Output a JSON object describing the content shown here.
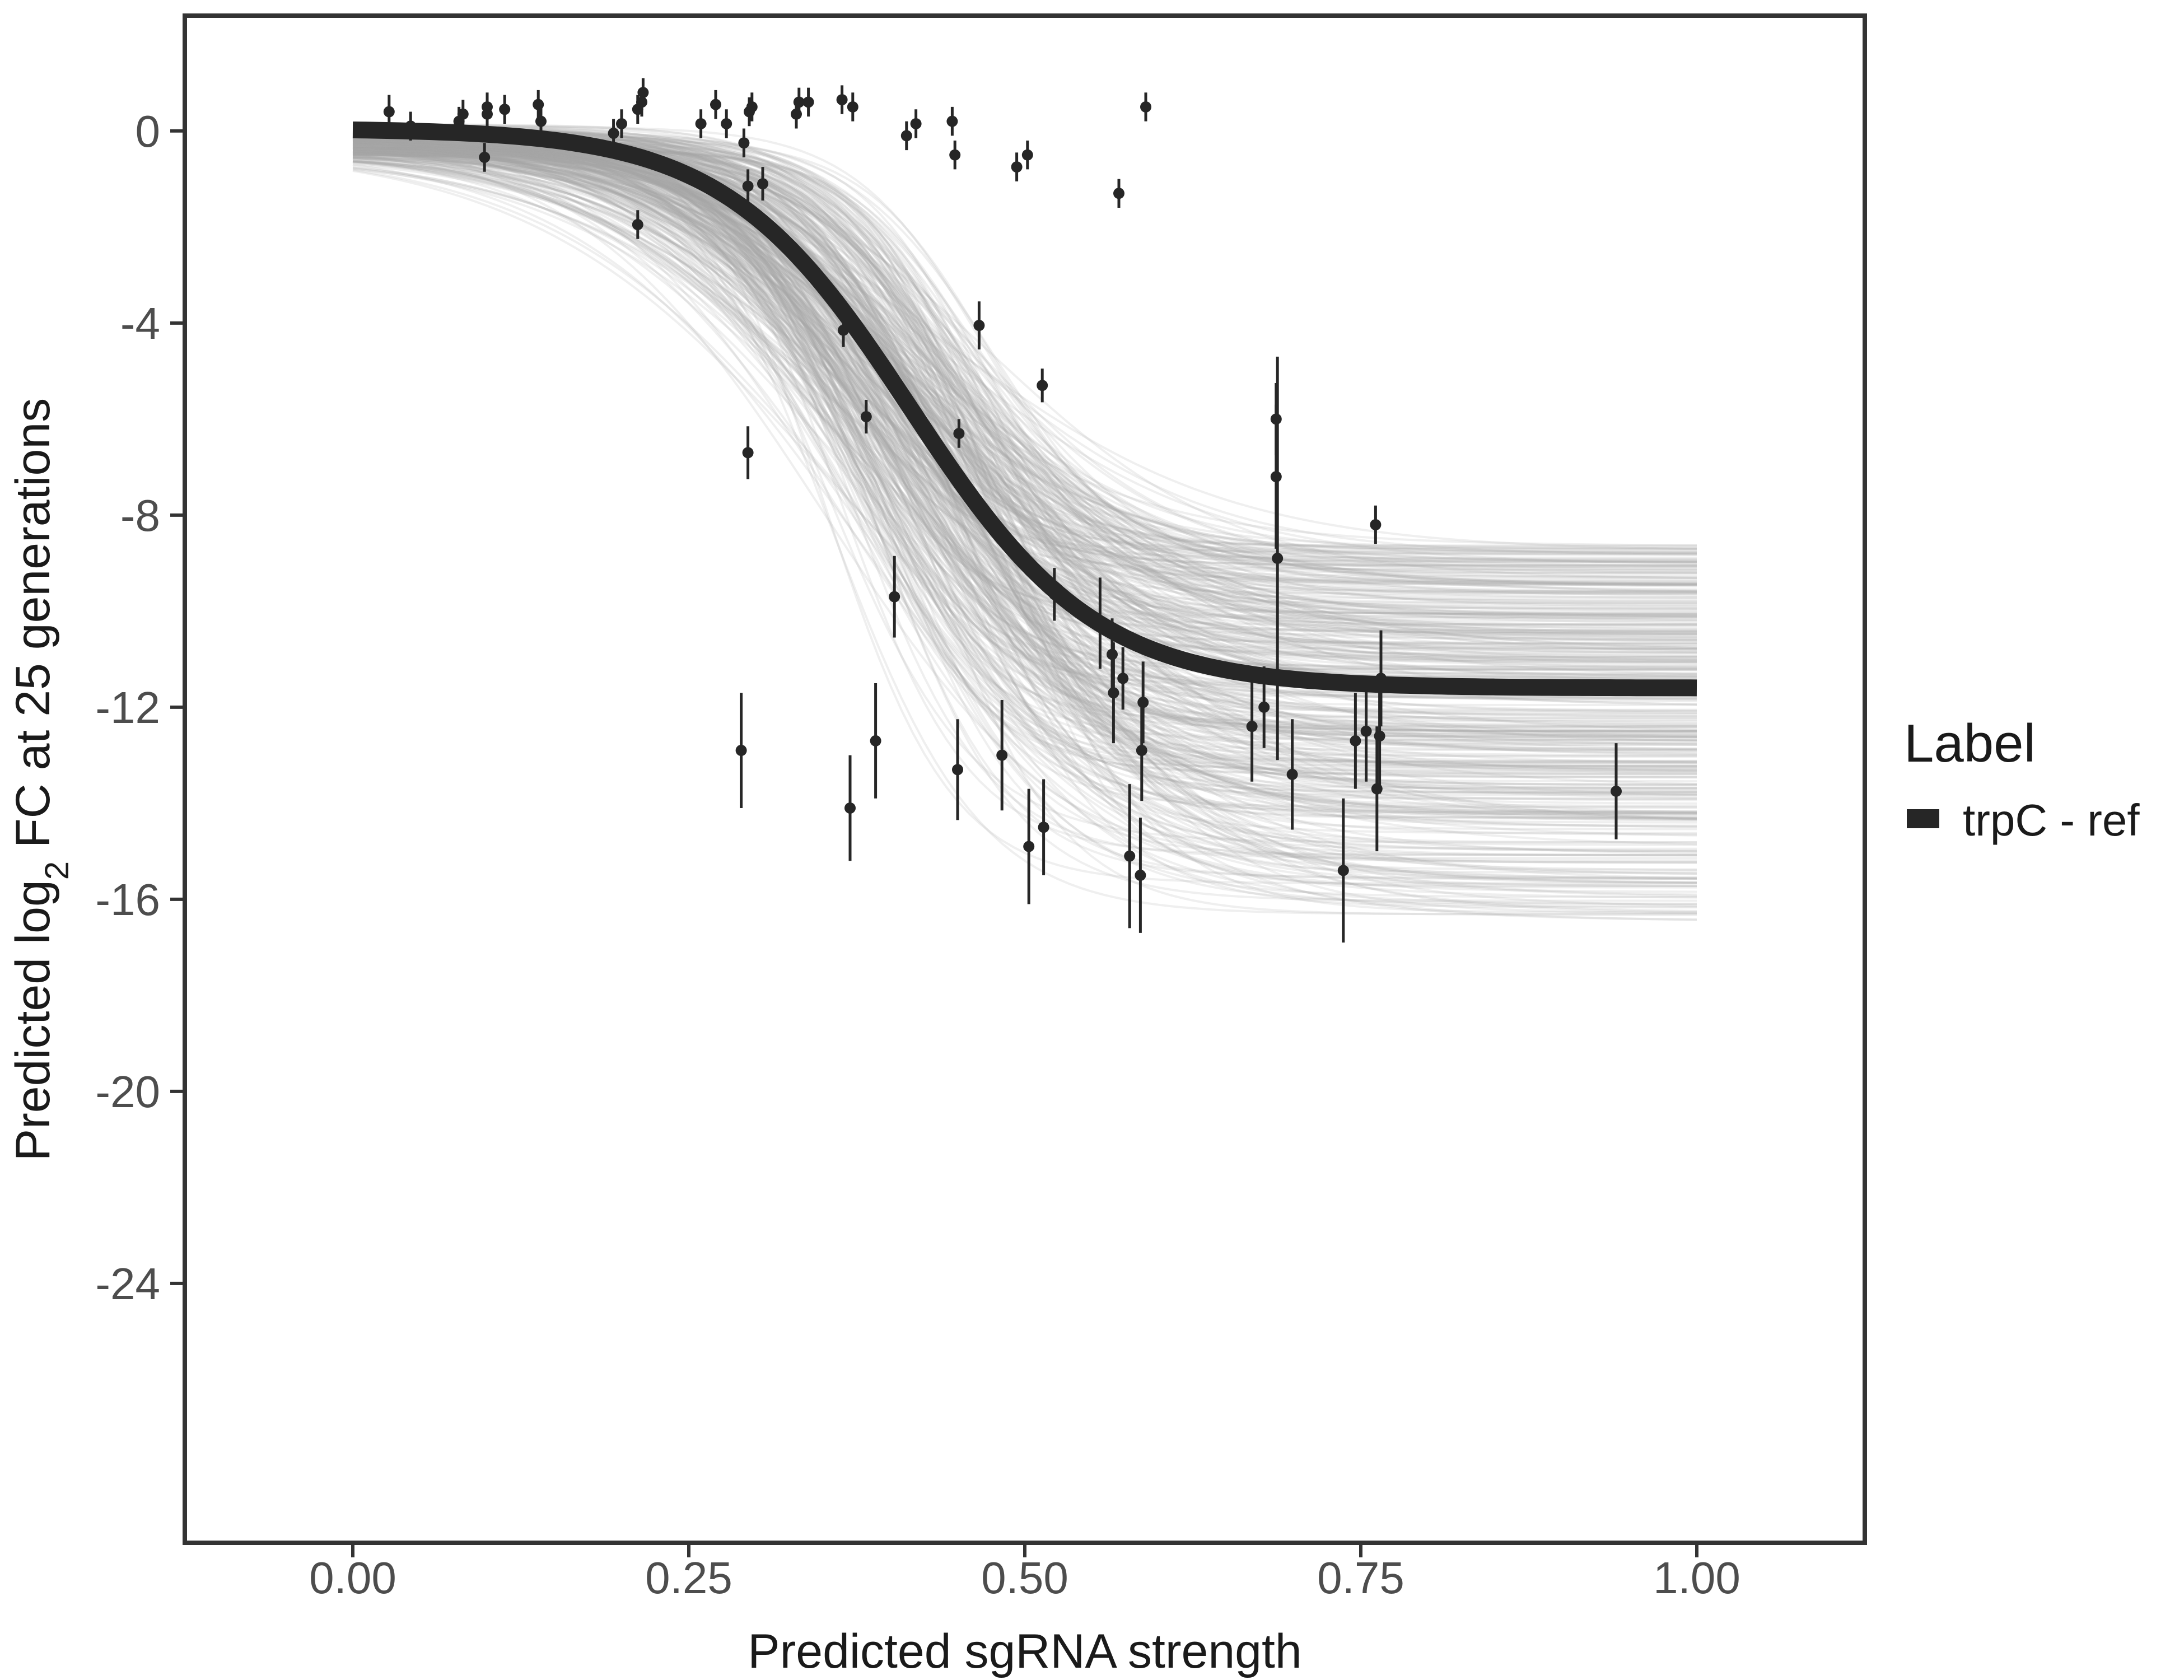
{
  "chart_data": {
    "type": "scatter",
    "xlabel": "Predicted sgRNA strength",
    "ylabel": {
      "prefix": "Predicted  log",
      "subscript": "2",
      "suffix": " FC at 25 generations"
    },
    "xlim": [
      -0.125,
      1.125
    ],
    "ylim": [
      -29.4,
      2.4
    ],
    "x_ticks": [
      0,
      0.25,
      0.5,
      0.75,
      1
    ],
    "x_tick_labels": [
      "0.00",
      "0.25",
      "0.50",
      "0.75",
      "1.00"
    ],
    "y_ticks": [
      0,
      -4,
      -8,
      -12,
      -16,
      -20,
      -24
    ],
    "y_tick_labels": [
      "0",
      "-4",
      "-8",
      "-12",
      "-16",
      "-20",
      "-24"
    ],
    "grid": false,
    "legend": {
      "title": "Label",
      "position": "right",
      "entries": [
        {
          "label": "trpC - ref",
          "color": "#262626"
        }
      ]
    },
    "colors": {
      "fit_line": "#262626",
      "posterior_draws": "#a6a6a6",
      "points": "#262626",
      "panel_border": "#333333"
    },
    "fit_curve": {
      "model": "logistic",
      "upper": 0.05,
      "lower": -11.6,
      "midpoint": 0.415,
      "slope": 14.5,
      "x_range": [
        0,
        1
      ]
    },
    "posterior_draws": {
      "count": 420,
      "seed": 7,
      "lower_range": [
        -16.5,
        -8.6
      ],
      "midpoint_range": [
        0.35,
        0.48
      ],
      "slope_range": [
        9,
        22
      ],
      "upper_range": [
        -0.5,
        0.15
      ]
    },
    "points": [
      {
        "x": 0.027,
        "y": 0.4,
        "err": 0.35
      },
      {
        "x": 0.043,
        "y": 0.1,
        "err": 0.3
      },
      {
        "x": 0.079,
        "y": 0.2,
        "err": 0.3
      },
      {
        "x": 0.082,
        "y": 0.35,
        "err": 0.3
      },
      {
        "x": 0.098,
        "y": -0.55,
        "err": 0.3
      },
      {
        "x": 0.1,
        "y": 0.35,
        "err": 0.3
      },
      {
        "x": 0.1,
        "y": 0.5,
        "err": 0.3
      },
      {
        "x": 0.113,
        "y": 0.45,
        "err": 0.3
      },
      {
        "x": 0.138,
        "y": 0.55,
        "err": 0.3
      },
      {
        "x": 0.14,
        "y": 0.2,
        "err": 0.3
      },
      {
        "x": 0.194,
        "y": -0.05,
        "err": 0.3
      },
      {
        "x": 0.2,
        "y": 0.15,
        "err": 0.3
      },
      {
        "x": 0.212,
        "y": -1.95,
        "err": 0.3
      },
      {
        "x": 0.212,
        "y": 0.45,
        "err": 0.3
      },
      {
        "x": 0.215,
        "y": 0.6,
        "err": 0.3
      },
      {
        "x": 0.216,
        "y": 0.8,
        "err": 0.3
      },
      {
        "x": 0.259,
        "y": 0.15,
        "err": 0.3
      },
      {
        "x": 0.27,
        "y": 0.55,
        "err": 0.3
      },
      {
        "x": 0.278,
        "y": 0.15,
        "err": 0.3
      },
      {
        "x": 0.289,
        "y": -12.9,
        "err": 1.2
      },
      {
        "x": 0.291,
        "y": -0.25,
        "err": 0.3
      },
      {
        "x": 0.294,
        "y": -6.7,
        "err": 0.55
      },
      {
        "x": 0.294,
        "y": -1.15,
        "err": 0.35
      },
      {
        "x": 0.295,
        "y": 0.4,
        "err": 0.3
      },
      {
        "x": 0.297,
        "y": 0.5,
        "err": 0.3
      },
      {
        "x": 0.305,
        "y": -1.1,
        "err": 0.35
      },
      {
        "x": 0.33,
        "y": 0.35,
        "err": 0.3
      },
      {
        "x": 0.332,
        "y": 0.6,
        "err": 0.3
      },
      {
        "x": 0.339,
        "y": 0.6,
        "err": 0.3
      },
      {
        "x": 0.365,
        "y": -4.15,
        "err": 0.35
      },
      {
        "x": 0.364,
        "y": 0.65,
        "err": 0.3
      },
      {
        "x": 0.37,
        "y": -14.1,
        "err": 1.1
      },
      {
        "x": 0.372,
        "y": 0.5,
        "err": 0.3
      },
      {
        "x": 0.382,
        "y": -5.95,
        "err": 0.35
      },
      {
        "x": 0.389,
        "y": -12.7,
        "err": 1.2
      },
      {
        "x": 0.403,
        "y": -9.7,
        "err": 0.85
      },
      {
        "x": 0.412,
        "y": -0.1,
        "err": 0.3
      },
      {
        "x": 0.419,
        "y": 0.15,
        "err": 0.3
      },
      {
        "x": 0.446,
        "y": 0.2,
        "err": 0.3
      },
      {
        "x": 0.448,
        "y": -0.5,
        "err": 0.3
      },
      {
        "x": 0.45,
        "y": -13.3,
        "err": 1.05
      },
      {
        "x": 0.451,
        "y": -6.3,
        "err": 0.3
      },
      {
        "x": 0.466,
        "y": -4.05,
        "err": 0.5
      },
      {
        "x": 0.483,
        "y": -13.0,
        "err": 1.15
      },
      {
        "x": 0.494,
        "y": -0.75,
        "err": 0.3
      },
      {
        "x": 0.502,
        "y": -0.5,
        "err": 0.3
      },
      {
        "x": 0.503,
        "y": -14.9,
        "err": 1.2
      },
      {
        "x": 0.513,
        "y": -5.3,
        "err": 0.35
      },
      {
        "x": 0.514,
        "y": -14.5,
        "err": 1.0
      },
      {
        "x": 0.522,
        "y": -9.65,
        "err": 0.55
      },
      {
        "x": 0.556,
        "y": -10.25,
        "err": 0.95
      },
      {
        "x": 0.565,
        "y": -10.9,
        "err": 0.75
      },
      {
        "x": 0.566,
        "y": -11.7,
        "err": 1.05
      },
      {
        "x": 0.57,
        "y": -1.3,
        "err": 0.3
      },
      {
        "x": 0.573,
        "y": -11.4,
        "err": 0.65
      },
      {
        "x": 0.578,
        "y": -15.1,
        "err": 1.5
      },
      {
        "x": 0.586,
        "y": -15.5,
        "err": 1.2
      },
      {
        "x": 0.587,
        "y": -12.9,
        "err": 1.05
      },
      {
        "x": 0.588,
        "y": -11.9,
        "err": 0.85
      },
      {
        "x": 0.59,
        "y": 0.5,
        "err": 0.3
      },
      {
        "x": 0.669,
        "y": -12.4,
        "err": 1.15
      },
      {
        "x": 0.678,
        "y": -12.0,
        "err": 0.85
      },
      {
        "x": 0.687,
        "y": -6.0,
        "err": 0.75
      },
      {
        "x": 0.687,
        "y": -7.2,
        "err": 1.5
      },
      {
        "x": 0.688,
        "y": -8.9,
        "err": 4.2
      },
      {
        "x": 0.699,
        "y": -13.4,
        "err": 1.15
      },
      {
        "x": 0.737,
        "y": -15.4,
        "err": 1.5
      },
      {
        "x": 0.746,
        "y": -12.7,
        "err": 1.0
      },
      {
        "x": 0.754,
        "y": -12.5,
        "err": 1.05
      },
      {
        "x": 0.761,
        "y": -8.2,
        "err": 0.4
      },
      {
        "x": 0.762,
        "y": -13.7,
        "err": 1.3
      },
      {
        "x": 0.764,
        "y": -12.6,
        "err": 1.2
      },
      {
        "x": 0.765,
        "y": -11.4,
        "err": 1.0
      },
      {
        "x": 0.94,
        "y": -13.75,
        "err": 1.0
      }
    ]
  }
}
